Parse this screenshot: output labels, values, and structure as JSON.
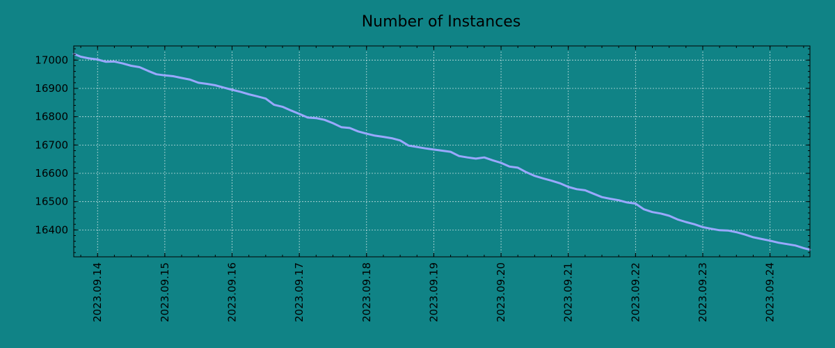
{
  "chart_data": {
    "type": "line",
    "title": "Number of Instances",
    "xlabel": "",
    "ylabel": "",
    "background_color": "#108386",
    "line_color": "#9aa8ff",
    "grid": true,
    "x_is_date": true,
    "xlim": [
      "2023-09-13 15:30",
      "2023-09-24 14:15"
    ],
    "ylim": [
      16305,
      17050
    ],
    "x_ticks": [
      "2023.09.14",
      "2023.09.15",
      "2023.09.16",
      "2023.09.17",
      "2023.09.18",
      "2023.09.19",
      "2023.09.20",
      "2023.09.21",
      "2023.09.22",
      "2023.09.23",
      "2023.09.24"
    ],
    "y_ticks": [
      "16400",
      "16500",
      "16600",
      "16700",
      "16800",
      "16900",
      "17000"
    ],
    "series": [
      {
        "x": [
          "2023-09-13 15:30",
          "2023-09-13 18:00",
          "2023-09-13 21:00",
          "2023-09-14 00:00",
          "2023-09-14 03:00",
          "2023-09-14 06:00",
          "2023-09-14 09:00",
          "2023-09-14 12:00",
          "2023-09-14 15:00",
          "2023-09-14 18:00",
          "2023-09-14 21:00",
          "2023-09-15 00:00",
          "2023-09-15 03:00",
          "2023-09-15 06:00",
          "2023-09-15 09:00",
          "2023-09-15 12:00",
          "2023-09-15 15:00",
          "2023-09-15 18:00",
          "2023-09-15 21:00",
          "2023-09-16 00:00",
          "2023-09-16 03:00",
          "2023-09-16 06:00",
          "2023-09-16 09:00",
          "2023-09-16 12:00",
          "2023-09-16 15:00",
          "2023-09-16 18:00",
          "2023-09-16 21:00",
          "2023-09-17 00:00",
          "2023-09-17 03:00",
          "2023-09-17 06:00",
          "2023-09-17 09:00",
          "2023-09-17 12:00",
          "2023-09-17 15:00",
          "2023-09-17 18:00",
          "2023-09-17 21:00",
          "2023-09-18 00:00",
          "2023-09-18 03:00",
          "2023-09-18 06:00",
          "2023-09-18 09:00",
          "2023-09-18 12:00",
          "2023-09-18 15:00",
          "2023-09-18 18:00",
          "2023-09-18 21:00",
          "2023-09-19 00:00",
          "2023-09-19 03:00",
          "2023-09-19 06:00",
          "2023-09-19 09:00",
          "2023-09-19 12:00",
          "2023-09-19 15:00",
          "2023-09-19 18:00",
          "2023-09-19 21:00",
          "2023-09-20 00:00",
          "2023-09-20 03:00",
          "2023-09-20 06:00",
          "2023-09-20 09:00",
          "2023-09-20 12:00",
          "2023-09-20 15:00",
          "2023-09-20 18:00",
          "2023-09-20 21:00",
          "2023-09-21 00:00",
          "2023-09-21 03:00",
          "2023-09-21 06:00",
          "2023-09-21 09:00",
          "2023-09-21 12:00",
          "2023-09-21 15:00",
          "2023-09-21 18:00",
          "2023-09-21 21:00",
          "2023-09-22 00:00",
          "2023-09-22 03:00",
          "2023-09-22 06:00",
          "2023-09-22 09:00",
          "2023-09-22 12:00",
          "2023-09-22 15:00",
          "2023-09-22 18:00",
          "2023-09-22 21:00",
          "2023-09-23 00:00",
          "2023-09-23 03:00",
          "2023-09-23 06:00",
          "2023-09-23 09:00",
          "2023-09-23 12:00",
          "2023-09-23 15:00",
          "2023-09-23 18:00",
          "2023-09-23 21:00",
          "2023-09-24 00:00",
          "2023-09-24 03:00",
          "2023-09-24 06:00",
          "2023-09-24 09:00",
          "2023-09-24 12:00",
          "2023-09-24 14:15"
        ],
        "y": [
          17022,
          17012,
          17006,
          17002,
          16994,
          16995,
          16988,
          16980,
          16975,
          16962,
          16950,
          16946,
          16943,
          16937,
          16931,
          16920,
          16916,
          16911,
          16903,
          16895,
          16888,
          16879,
          16872,
          16864,
          16842,
          16835,
          16822,
          16810,
          16797,
          16795,
          16789,
          16777,
          16763,
          16760,
          16748,
          16740,
          16733,
          16729,
          16724,
          16716,
          16698,
          16693,
          16688,
          16684,
          16680,
          16676,
          16661,
          16656,
          16652,
          16656,
          16646,
          16637,
          16624,
          16620,
          16604,
          16591,
          16582,
          16574,
          16565,
          16552,
          16544,
          16540,
          16528,
          16516,
          16510,
          16505,
          16497,
          16493,
          16473,
          16463,
          16458,
          16450,
          16437,
          16428,
          16420,
          16410,
          16404,
          16399,
          16398,
          16392,
          16384,
          16374,
          16368,
          16362,
          16355,
          16350,
          16345,
          16336,
          16330
        ]
      }
    ]
  }
}
